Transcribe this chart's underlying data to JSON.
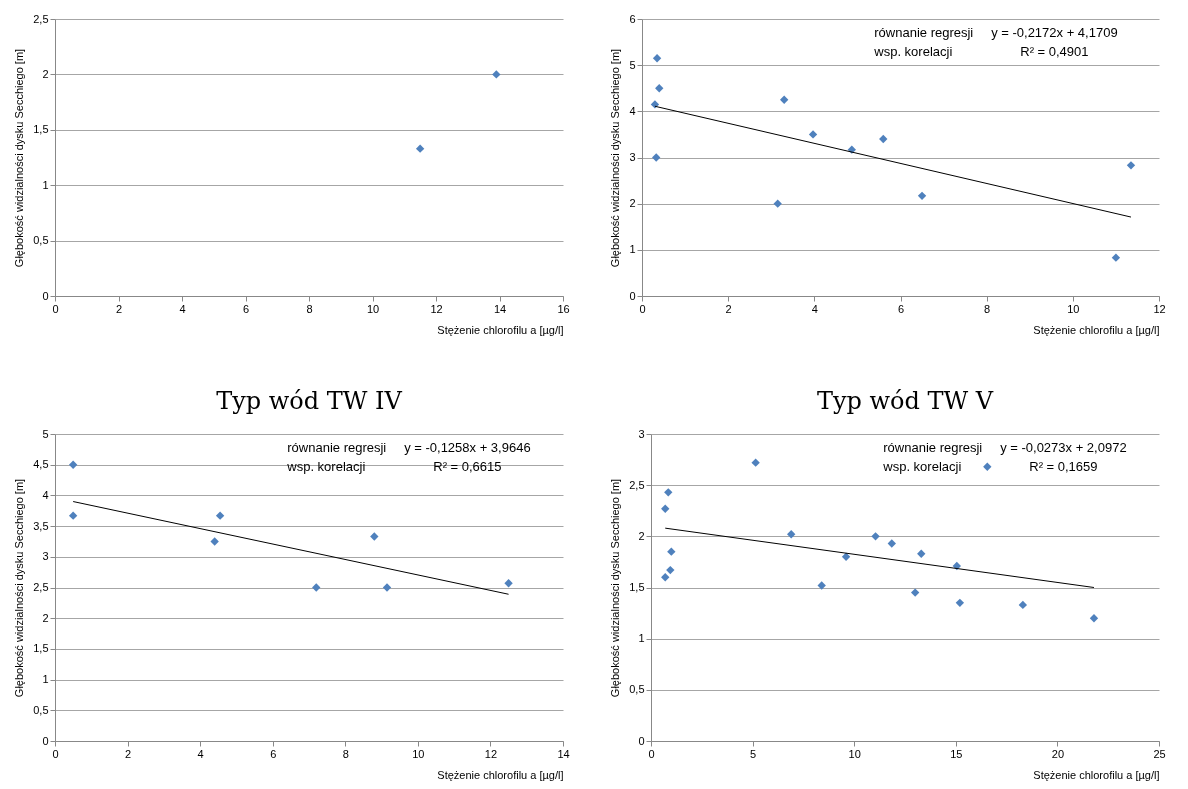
{
  "chart_data": [
    {
      "type": "scatter",
      "xlabel": "Stężenie chlorofilu a [µg/l]",
      "ylabel": "Głębokość widzialności dysku Secchiego [m]",
      "marker": "diamond",
      "grid": "y",
      "xlim": [
        0,
        16
      ],
      "xticks": [
        0,
        2,
        4,
        6,
        8,
        10,
        12,
        14,
        16
      ],
      "ylim": [
        0,
        2.5
      ],
      "yticks": [
        0,
        {
          "value": 0.5,
          "label": "0,5"
        },
        1,
        {
          "value": 1.5,
          "label": "1,5"
        },
        2,
        {
          "value": 2.5,
          "label": "2,5"
        }
      ],
      "series": [
        {
          "color": "#4f81bd",
          "x": [
            11.5,
            13.9
          ],
          "values": [
            1.33,
            2.0
          ]
        }
      ]
    },
    {
      "type": "scatter",
      "xlabel": "Stężenie chlorofilu a [µg/l]",
      "ylabel": "Głębokość widzialności dysku Secchiego [m]",
      "marker": "diamond",
      "grid": "y",
      "xlim": [
        0,
        12
      ],
      "xticks": [
        0,
        2,
        4,
        6,
        8,
        10,
        12
      ],
      "ylim": [
        0,
        6
      ],
      "yticks": [
        0,
        1,
        2,
        3,
        4,
        5,
        6
      ],
      "annotations": [
        "równanie regresji",
        "wsp. korelacji",
        "y = -0,2172x + 4,1709",
        "R² = 0,4901"
      ],
      "series": [
        {
          "color": "#4f81bd",
          "x": [
            0.35,
            0.4,
            0.3,
            0.33,
            3.15,
            3.3,
            3.97,
            4.87,
            5.6,
            6.5,
            11.35,
            11.0
          ],
          "values": [
            5.15,
            4.5,
            4.15,
            3.0,
            2.0,
            4.25,
            3.5,
            3.17,
            3.4,
            2.17,
            2.83,
            0.83
          ]
        },
        {
          "type": "line",
          "marker": "none",
          "color": "#000000",
          "x": [
            0.3,
            11.35
          ],
          "values": [
            4.11,
            1.71
          ]
        }
      ]
    },
    {
      "type": "scatter",
      "title": "Typ wód TW IV",
      "xlabel": "Stężenie chlorofilu a [µg/l]",
      "ylabel": "Głębokość widzialności dysku Secchiego [m]",
      "marker": "diamond",
      "grid": "y",
      "xlim": [
        0,
        14
      ],
      "xticks": [
        0,
        2,
        4,
        6,
        8,
        10,
        12,
        14
      ],
      "ylim": [
        0,
        5
      ],
      "yticks": [
        0,
        {
          "value": 0.5,
          "label": "0,5"
        },
        1,
        {
          "value": 1.5,
          "label": "1,5"
        },
        2,
        {
          "value": 2.5,
          "label": "2,5"
        },
        3,
        {
          "value": 3.5,
          "label": "3,5"
        },
        4,
        {
          "value": 4.5,
          "label": "4,5"
        },
        5
      ],
      "annotations": [
        "równanie regresji",
        "wsp. korelacji",
        "y = -0,1258x + 3,9646",
        "R² = 0,6615"
      ],
      "series": [
        {
          "color": "#4f81bd",
          "x": [
            0.5,
            0.5,
            4.4,
            4.55,
            7.2,
            8.8,
            9.15,
            12.5
          ],
          "values": [
            4.5,
            3.67,
            3.25,
            3.67,
            2.5,
            3.33,
            2.5,
            2.57
          ]
        },
        {
          "type": "line",
          "marker": "none",
          "color": "#000000",
          "x": [
            0.5,
            12.5
          ],
          "values": [
            3.9,
            2.39
          ]
        }
      ]
    },
    {
      "type": "scatter",
      "title": "Typ wód TW V",
      "xlabel": "Stężenie chlorofilu a [µg/l]",
      "ylabel": "Głębokość widzialności dysku Secchiego [m]",
      "marker": "diamond",
      "grid": "y",
      "xlim": [
        0,
        25
      ],
      "xticks": [
        0,
        5,
        10,
        15,
        20,
        25
      ],
      "ylim": [
        0,
        3
      ],
      "yticks": [
        0,
        {
          "value": 0.5,
          "label": "0,5"
        },
        1,
        {
          "value": 1.5,
          "label": "1,5"
        },
        2,
        {
          "value": 2.5,
          "label": "2,5"
        },
        3
      ],
      "annotations": [
        "równanie regresji",
        "wsp. korelacji",
        "y = -0,0273x + 2,0972",
        "R² = 0,1659"
      ],
      "series": [
        {
          "color": "#4f81bd",
          "x": [
            0.7,
            0.85,
            0.7,
            0.95,
            1.0,
            5.15,
            6.9,
            8.4,
            9.6,
            11.05,
            11.85,
            13.0,
            13.3,
            15.05,
            15.2,
            18.3,
            21.8,
            16.55
          ],
          "values": [
            2.27,
            2.43,
            1.6,
            1.67,
            1.85,
            2.72,
            2.02,
            1.52,
            1.8,
            2.0,
            1.93,
            1.45,
            1.83,
            1.71,
            1.35,
            1.33,
            1.2,
            2.68
          ]
        },
        {
          "type": "line",
          "marker": "none",
          "color": "#000000",
          "x": [
            0.7,
            21.8
          ],
          "values": [
            2.08,
            1.5
          ]
        }
      ]
    }
  ]
}
